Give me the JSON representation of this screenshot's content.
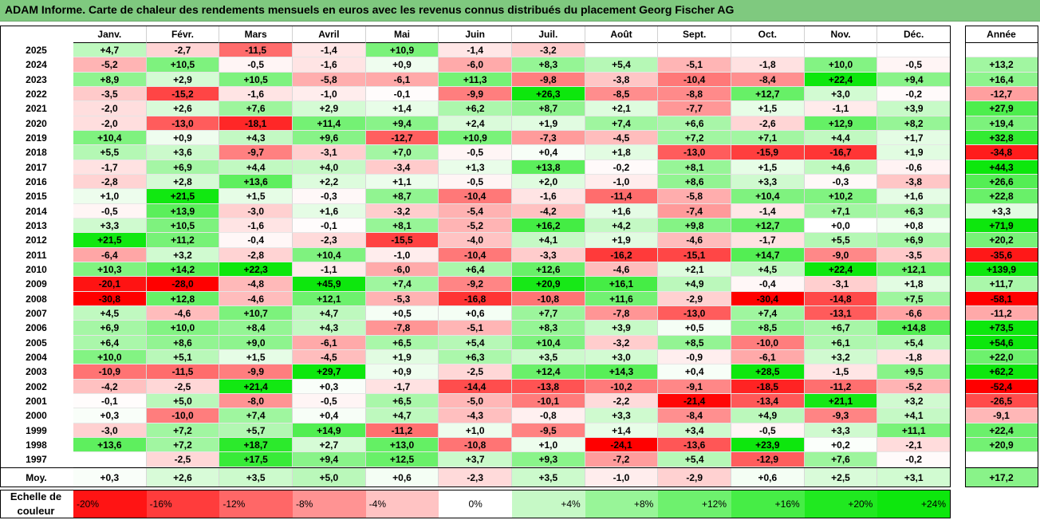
{
  "title": "ADAM Informe. Carte de chaleur des rendements mensuels en euros avec les revenus connus distribués du placement Georg Fischer AG",
  "chart_data": {
    "type": "heatmap",
    "columns": [
      "Janv.",
      "Févr.",
      "Mars",
      "Avril",
      "Mai",
      "Juin",
      "Juil.",
      "Août",
      "Sept.",
      "Oct.",
      "Nov.",
      "Déc."
    ],
    "year_header": "Année",
    "rows": [
      {
        "year": "2025",
        "values": [
          "+4,7",
          "-2,7",
          "-11,5",
          "-1,4",
          "+10,9",
          "-1,4",
          "-3,2",
          "",
          "",
          "",
          "",
          ""
        ],
        "annual": ""
      },
      {
        "year": "2024",
        "values": [
          "-5,2",
          "+10,5",
          "-0,5",
          "-1,6",
          "+0,9",
          "-6,0",
          "+8,3",
          "+5,4",
          "-5,1",
          "-1,8",
          "+10,0",
          "-0,5"
        ],
        "annual": "+13,2"
      },
      {
        "year": "2023",
        "values": [
          "+8,9",
          "+2,9",
          "+10,5",
          "-5,8",
          "-6,1",
          "+11,3",
          "-9,8",
          "-3,8",
          "-10,4",
          "-8,4",
          "+22,4",
          "+9,4"
        ],
        "annual": "+16,4"
      },
      {
        "year": "2022",
        "values": [
          "-3,5",
          "-15,2",
          "-1,6",
          "-1,0",
          "-0,1",
          "-9,9",
          "+26,3",
          "-8,5",
          "-8,8",
          "+12,7",
          "+3,0",
          "-0,2"
        ],
        "annual": "-12,7"
      },
      {
        "year": "2021",
        "values": [
          "-2,0",
          "+2,6",
          "+7,6",
          "+2,9",
          "+1,4",
          "+6,2",
          "+8,7",
          "+2,1",
          "-7,7",
          "+1,5",
          "-1,1",
          "+3,9"
        ],
        "annual": "+27,9"
      },
      {
        "year": "2020",
        "values": [
          "-2,0",
          "-13,0",
          "-18,1",
          "+11,4",
          "+9,4",
          "+2,4",
          "+1,9",
          "+7,4",
          "+6,6",
          "-2,6",
          "+12,9",
          "+8,2"
        ],
        "annual": "+19,4"
      },
      {
        "year": "2019",
        "values": [
          "+10,4",
          "+0,9",
          "+4,3",
          "+9,6",
          "-12,7",
          "+10,9",
          "-7,3",
          "-4,5",
          "+7,2",
          "+7,1",
          "+4,4",
          "+1,7"
        ],
        "annual": "+32,8"
      },
      {
        "year": "2018",
        "values": [
          "+5,5",
          "+3,6",
          "-9,7",
          "-3,1",
          "+7,0",
          "-0,5",
          "+0,4",
          "+1,8",
          "-13,0",
          "-15,9",
          "-16,7",
          "+1,9"
        ],
        "annual": "-34,8"
      },
      {
        "year": "2017",
        "values": [
          "-1,7",
          "+6,9",
          "+4,4",
          "+4,0",
          "-3,4",
          "+1,3",
          "+13,8",
          "-0,2",
          "+8,1",
          "+1,5",
          "+4,6",
          "-0,6"
        ],
        "annual": "+44,3"
      },
      {
        "year": "2016",
        "values": [
          "-2,8",
          "+2,8",
          "+13,6",
          "+2,2",
          "+1,1",
          "-0,5",
          "+2,0",
          "-1,0",
          "+8,6",
          "+3,3",
          "-0,3",
          "-3,8"
        ],
        "annual": "+26,6"
      },
      {
        "year": "2015",
        "values": [
          "+1,0",
          "+21,5",
          "+1,5",
          "-0,3",
          "+8,7",
          "-10,4",
          "-1,6",
          "-11,4",
          "-5,8",
          "+10,4",
          "+10,2",
          "+1,6"
        ],
        "annual": "+22,8"
      },
      {
        "year": "2014",
        "values": [
          "-0,5",
          "+13,9",
          "-3,0",
          "+1,6",
          "-3,2",
          "-5,4",
          "-4,2",
          "+1,6",
          "-7,4",
          "-1,4",
          "+7,1",
          "+6,3"
        ],
        "annual": "+3,3"
      },
      {
        "year": "2013",
        "values": [
          "+3,3",
          "+10,5",
          "-1,6",
          "-0,1",
          "+8,1",
          "-5,2",
          "+16,2",
          "+4,2",
          "+9,8",
          "+12,7",
          "+0,0",
          "+0,8"
        ],
        "annual": "+71,9"
      },
      {
        "year": "2012",
        "values": [
          "+21,5",
          "+11,2",
          "-0,4",
          "-2,3",
          "-15,5",
          "-4,0",
          "+4,1",
          "+1,9",
          "-4,6",
          "-1,7",
          "+5,5",
          "+6,9"
        ],
        "annual": "+20,2"
      },
      {
        "year": "2011",
        "values": [
          "-6,4",
          "+3,2",
          "-2,8",
          "+10,4",
          "-1,0",
          "-10,4",
          "-3,3",
          "-16,2",
          "-15,1",
          "+14,7",
          "-9,0",
          "-3,5"
        ],
        "annual": "-35,6"
      },
      {
        "year": "2010",
        "values": [
          "+10,3",
          "+14,2",
          "+22,3",
          "-1,1",
          "-6,0",
          "+6,4",
          "+12,6",
          "-4,6",
          "+2,1",
          "+4,5",
          "+22,4",
          "+12,1"
        ],
        "annual": "+139,9"
      },
      {
        "year": "2009",
        "values": [
          "-20,1",
          "-28,0",
          "-4,8",
          "+45,9",
          "+7,4",
          "-9,2",
          "+20,9",
          "+16,1",
          "+4,9",
          "-0,4",
          "-3,1",
          "+1,8"
        ],
        "annual": "+11,7"
      },
      {
        "year": "2008",
        "values": [
          "-30,8",
          "+12,8",
          "-4,6",
          "+12,1",
          "-5,3",
          "-16,8",
          "-10,8",
          "+11,6",
          "-2,9",
          "-30,4",
          "-14,8",
          "+7,5"
        ],
        "annual": "-58,1"
      },
      {
        "year": "2007",
        "values": [
          "+4,5",
          "-4,6",
          "+10,7",
          "+4,7",
          "+0,5",
          "+0,6",
          "+7,7",
          "-7,8",
          "-13,0",
          "+7,4",
          "-13,1",
          "-6,6"
        ],
        "annual": "-11,2"
      },
      {
        "year": "2006",
        "values": [
          "+6,9",
          "+10,0",
          "+8,4",
          "+4,3",
          "-7,8",
          "-5,1",
          "+8,3",
          "+3,9",
          "+0,5",
          "+8,5",
          "+6,7",
          "+14,8"
        ],
        "annual": "+73,5"
      },
      {
        "year": "2005",
        "values": [
          "+6,4",
          "+8,6",
          "+9,0",
          "-6,1",
          "+6,5",
          "+5,4",
          "+10,4",
          "-3,2",
          "+8,5",
          "-10,0",
          "+6,1",
          "+5,4"
        ],
        "annual": "+54,6"
      },
      {
        "year": "2004",
        "values": [
          "+10,0",
          "+5,1",
          "+1,5",
          "-4,5",
          "+1,9",
          "+6,3",
          "+3,5",
          "+3,0",
          "-0,9",
          "-6,1",
          "+3,2",
          "-1,8"
        ],
        "annual": "+22,0"
      },
      {
        "year": "2003",
        "values": [
          "-10,9",
          "-11,5",
          "-9,9",
          "+29,7",
          "+0,9",
          "-2,5",
          "+12,4",
          "+14,3",
          "+0,4",
          "+28,5",
          "-1,5",
          "+9,5"
        ],
        "annual": "+62,2"
      },
      {
        "year": "2002",
        "values": [
          "-4,2",
          "-2,5",
          "+21,4",
          "+0,3",
          "-1,7",
          "-14,4",
          "-13,8",
          "-10,2",
          "-9,1",
          "-18,5",
          "-11,2",
          "-5,2"
        ],
        "annual": "-52,4"
      },
      {
        "year": "2001",
        "values": [
          "-0,1",
          "+5,0",
          "-8,0",
          "-0,5",
          "+6,5",
          "-5,0",
          "-10,1",
          "-2,2",
          "-21,4",
          "-13,4",
          "+21,1",
          "+3,2"
        ],
        "annual": "-26,5"
      },
      {
        "year": "2000",
        "values": [
          "+0,3",
          "-10,0",
          "+7,4",
          "+0,4",
          "+4,7",
          "-4,3",
          "-0,8",
          "+3,3",
          "-8,4",
          "+4,9",
          "-9,3",
          "+4,1"
        ],
        "annual": "-9,1"
      },
      {
        "year": "1999",
        "values": [
          "-3,0",
          "+7,2",
          "+5,7",
          "+14,9",
          "-11,2",
          "+1,0",
          "-9,5",
          "+1,4",
          "+3,4",
          "-0,5",
          "+3,3",
          "+11,1"
        ],
        "annual": "+22,4"
      },
      {
        "year": "1998",
        "values": [
          "+13,6",
          "+7,2",
          "+18,7",
          "+2,7",
          "+13,0",
          "-10,8",
          "+1,0",
          "-24,1",
          "-13,6",
          "+23,9",
          "+0,2",
          "-2,1"
        ],
        "annual": "+20,9"
      },
      {
        "year": "1997",
        "values": [
          "",
          "-2,5",
          "+17,5",
          "+9,4",
          "+12,5",
          "+3,7",
          "+9,3",
          "-7,2",
          "+5,4",
          "-12,9",
          "+7,6",
          "-0,2"
        ],
        "annual": ""
      }
    ],
    "average": {
      "label": "Moy.",
      "values": [
        "+0,3",
        "+2,6",
        "+3,5",
        "+5,0",
        "+0,6",
        "-2,3",
        "+3,5",
        "-1,0",
        "-2,9",
        "+0,6",
        "+2,5",
        "+3,1"
      ],
      "annual": "+17,2"
    },
    "scale": {
      "label_line1": "Echelle de",
      "label_line2": "couleur",
      "steps": [
        "-20%",
        "-16%",
        "-12%",
        "-8%",
        "-4%",
        "0%",
        "+4%",
        "+8%",
        "+12%",
        "+16%",
        "+20%",
        "+24%"
      ],
      "step_values": [
        -20,
        -16,
        -12,
        -8,
        -4,
        0,
        4,
        8,
        12,
        16,
        20,
        24
      ]
    },
    "colors": {
      "negative": "#ff0000",
      "positive": "#00e000",
      "neutral": "#ffffff",
      "title_bar": "#7fc97f"
    }
  }
}
